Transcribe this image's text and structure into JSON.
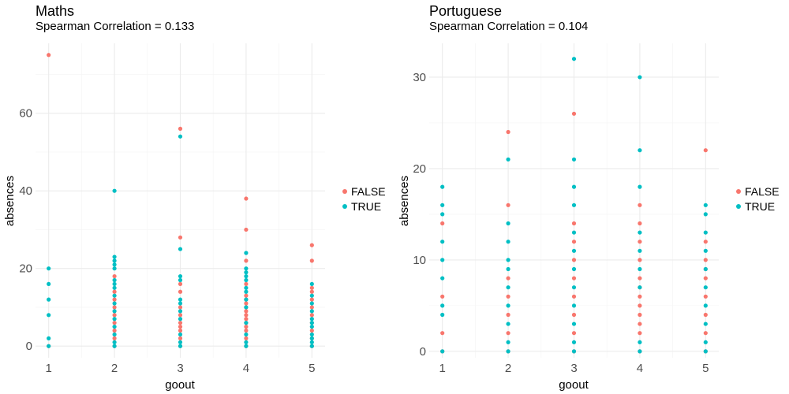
{
  "colors": {
    "FALSE": "#F8766D",
    "TRUE": "#00BFC4"
  },
  "chart_data": [
    {
      "type": "scatter",
      "title": "Maths",
      "subtitle": "Spearman Correlation = 0.133",
      "xlabel": "goout",
      "ylabel": "absences",
      "xlim": [
        0.8,
        5.2
      ],
      "ylim": [
        -3,
        78
      ],
      "xticks": [
        1,
        2,
        3,
        4,
        5
      ],
      "yticks": [
        0,
        20,
        40,
        60
      ],
      "grid": true,
      "legend": {
        "position": "right",
        "entries": [
          "FALSE",
          "TRUE"
        ]
      },
      "series": [
        {
          "name": "FALSE",
          "points": [
            [
              1,
              75
            ],
            [
              1,
              0
            ],
            [
              2,
              18
            ],
            [
              2,
              14
            ],
            [
              2,
              12
            ],
            [
              2,
              10
            ],
            [
              2,
              8
            ],
            [
              2,
              6
            ],
            [
              2,
              4
            ],
            [
              2,
              2
            ],
            [
              2,
              0
            ],
            [
              3,
              56
            ],
            [
              3,
              28
            ],
            [
              3,
              16
            ],
            [
              3,
              14
            ],
            [
              3,
              10
            ],
            [
              3,
              8
            ],
            [
              3,
              6
            ],
            [
              3,
              5
            ],
            [
              3,
              4
            ],
            [
              3,
              2
            ],
            [
              3,
              0
            ],
            [
              4,
              38
            ],
            [
              4,
              30
            ],
            [
              4,
              22
            ],
            [
              4,
              16
            ],
            [
              4,
              13
            ],
            [
              4,
              12
            ],
            [
              4,
              11
            ],
            [
              4,
              10
            ],
            [
              4,
              9
            ],
            [
              4,
              8
            ],
            [
              4,
              7
            ],
            [
              4,
              6
            ],
            [
              4,
              5
            ],
            [
              4,
              4
            ],
            [
              4,
              2
            ],
            [
              4,
              0
            ],
            [
              5,
              26
            ],
            [
              5,
              22
            ],
            [
              5,
              15
            ],
            [
              5,
              14
            ],
            [
              5,
              12
            ],
            [
              5,
              10
            ],
            [
              5,
              8
            ],
            [
              5,
              6
            ],
            [
              5,
              4
            ],
            [
              5,
              2
            ],
            [
              5,
              0
            ]
          ]
        },
        {
          "name": "TRUE",
          "points": [
            [
              1,
              20
            ],
            [
              1,
              16
            ],
            [
              1,
              12
            ],
            [
              1,
              8
            ],
            [
              1,
              2
            ],
            [
              1,
              0
            ],
            [
              2,
              40
            ],
            [
              2,
              23
            ],
            [
              2,
              22
            ],
            [
              2,
              21
            ],
            [
              2,
              20
            ],
            [
              2,
              17
            ],
            [
              2,
              16
            ],
            [
              2,
              15
            ],
            [
              2,
              13
            ],
            [
              2,
              11
            ],
            [
              2,
              9
            ],
            [
              2,
              7
            ],
            [
              2,
              5
            ],
            [
              2,
              3
            ],
            [
              2,
              1
            ],
            [
              2,
              0
            ],
            [
              3,
              54
            ],
            [
              3,
              25
            ],
            [
              3,
              18
            ],
            [
              3,
              17
            ],
            [
              3,
              12
            ],
            [
              3,
              11
            ],
            [
              3,
              9
            ],
            [
              3,
              7
            ],
            [
              3,
              3
            ],
            [
              3,
              1
            ],
            [
              3,
              0
            ],
            [
              4,
              24
            ],
            [
              4,
              20
            ],
            [
              4,
              19
            ],
            [
              4,
              18
            ],
            [
              4,
              17
            ],
            [
              4,
              15
            ],
            [
              4,
              14
            ],
            [
              4,
              12
            ],
            [
              4,
              10
            ],
            [
              4,
              6
            ],
            [
              4,
              3
            ],
            [
              4,
              1
            ],
            [
              4,
              0
            ],
            [
              5,
              16
            ],
            [
              5,
              13
            ],
            [
              5,
              11
            ],
            [
              5,
              9
            ],
            [
              5,
              7
            ],
            [
              5,
              6
            ],
            [
              5,
              5
            ],
            [
              5,
              3
            ],
            [
              5,
              2
            ],
            [
              5,
              1
            ],
            [
              5,
              0
            ]
          ]
        }
      ]
    },
    {
      "type": "scatter",
      "title": "Portuguese",
      "subtitle": "Spearman Correlation = 0.104",
      "xlabel": "goout",
      "ylabel": "absences",
      "xlim": [
        0.8,
        5.2
      ],
      "ylim": [
        -0.7,
        33.7
      ],
      "xticks": [
        1,
        2,
        3,
        4,
        5
      ],
      "yticks": [
        0,
        10,
        20,
        30
      ],
      "grid": true,
      "legend": {
        "position": "right",
        "entries": [
          "FALSE",
          "TRUE"
        ]
      },
      "series": [
        {
          "name": "FALSE",
          "points": [
            [
              1,
              14
            ],
            [
              1,
              6
            ],
            [
              1,
              2
            ],
            [
              1,
              0
            ],
            [
              2,
              24
            ],
            [
              2,
              16
            ],
            [
              2,
              8
            ],
            [
              2,
              6
            ],
            [
              2,
              4
            ],
            [
              2,
              2
            ],
            [
              2,
              0
            ],
            [
              3,
              26
            ],
            [
              3,
              14
            ],
            [
              3,
              12
            ],
            [
              3,
              10
            ],
            [
              3,
              8
            ],
            [
              3,
              6
            ],
            [
              3,
              4
            ],
            [
              3,
              2
            ],
            [
              3,
              0
            ],
            [
              4,
              16
            ],
            [
              4,
              14
            ],
            [
              4,
              12
            ],
            [
              4,
              10
            ],
            [
              4,
              8
            ],
            [
              4,
              7
            ],
            [
              4,
              6
            ],
            [
              4,
              5
            ],
            [
              4,
              4
            ],
            [
              4,
              3
            ],
            [
              4,
              2
            ],
            [
              4,
              0
            ],
            [
              5,
              22
            ],
            [
              5,
              12
            ],
            [
              5,
              10
            ],
            [
              5,
              9
            ],
            [
              5,
              8
            ],
            [
              5,
              6
            ],
            [
              5,
              4
            ],
            [
              5,
              2
            ],
            [
              5,
              0
            ]
          ]
        },
        {
          "name": "TRUE",
          "points": [
            [
              1,
              18
            ],
            [
              1,
              16
            ],
            [
              1,
              15
            ],
            [
              1,
              12
            ],
            [
              1,
              10
            ],
            [
              1,
              8
            ],
            [
              1,
              5
            ],
            [
              1,
              4
            ],
            [
              1,
              0
            ],
            [
              2,
              21
            ],
            [
              2,
              14
            ],
            [
              2,
              12
            ],
            [
              2,
              10
            ],
            [
              2,
              9
            ],
            [
              2,
              7
            ],
            [
              2,
              5
            ],
            [
              2,
              3
            ],
            [
              2,
              1
            ],
            [
              2,
              0
            ],
            [
              3,
              32
            ],
            [
              3,
              21
            ],
            [
              3,
              18
            ],
            [
              3,
              16
            ],
            [
              3,
              13
            ],
            [
              3,
              11
            ],
            [
              3,
              9
            ],
            [
              3,
              7
            ],
            [
              3,
              5
            ],
            [
              3,
              3
            ],
            [
              3,
              1
            ],
            [
              3,
              0
            ],
            [
              4,
              30
            ],
            [
              4,
              22
            ],
            [
              4,
              18
            ],
            [
              4,
              13
            ],
            [
              4,
              11
            ],
            [
              4,
              9
            ],
            [
              4,
              7
            ],
            [
              4,
              1
            ],
            [
              4,
              0
            ],
            [
              5,
              16
            ],
            [
              5,
              15
            ],
            [
              5,
              13
            ],
            [
              5,
              11
            ],
            [
              5,
              9
            ],
            [
              5,
              7
            ],
            [
              5,
              5
            ],
            [
              5,
              3
            ],
            [
              5,
              1
            ],
            [
              5,
              0
            ]
          ]
        }
      ]
    }
  ]
}
